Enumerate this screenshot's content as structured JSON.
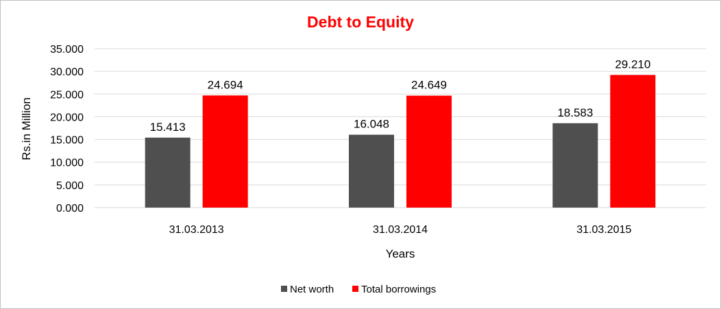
{
  "chart_data": {
    "type": "bar",
    "title": "Debt to Equity",
    "xlabel": "Years",
    "ylabel": "Rs.in Million",
    "categories": [
      "31.03.2013",
      "31.03.2014",
      "31.03.2015"
    ],
    "series": [
      {
        "name": "Net worth",
        "values": [
          15.413,
          16.048,
          18.583
        ],
        "labels": [
          "15.413",
          "16.048",
          "18.583"
        ],
        "color": "#4f4f4f"
      },
      {
        "name": "Total borrowings",
        "values": [
          24.694,
          24.649,
          29.21
        ],
        "labels": [
          "24.694",
          "24.649",
          "29.210"
        ],
        "color": "#ff0000"
      }
    ],
    "ylim": [
      0,
      35
    ],
    "yticks": [
      "0.000",
      "5.000",
      "10.000",
      "15.000",
      "20.000",
      "25.000",
      "30.000",
      "35.000"
    ],
    "grid": true,
    "legend_position": "bottom",
    "title_color": "#ff0000",
    "gridline_color": "#d9d9d9"
  }
}
